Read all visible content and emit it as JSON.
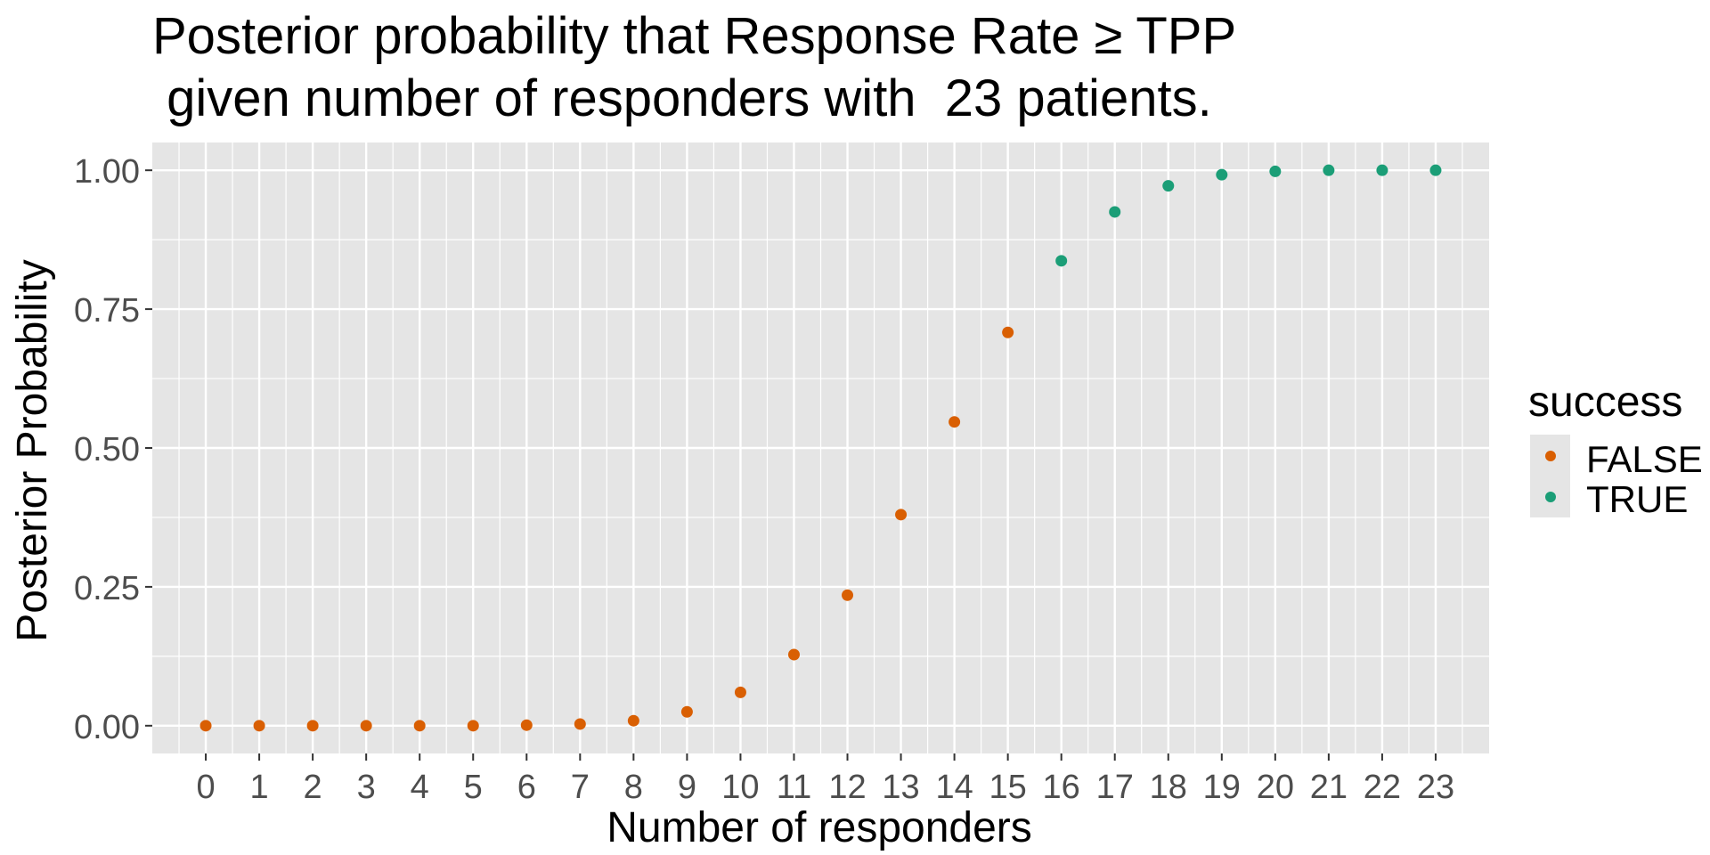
{
  "chart_data": {
    "type": "scatter",
    "title_lines": [
      "Posterior probability that Response Rate ≥ TPP",
      " given number of responders with  23 patients."
    ],
    "xlabel": "Number of responders",
    "ylabel": "Posterior Probability",
    "x": [
      0,
      1,
      2,
      3,
      4,
      5,
      6,
      7,
      8,
      9,
      10,
      11,
      12,
      13,
      14,
      15,
      16,
      17,
      18,
      19,
      20,
      21,
      22,
      23
    ],
    "y": [
      0.0,
      0.0,
      0.0,
      0.0,
      0.0,
      0.0,
      0.001,
      0.003,
      0.009,
      0.025,
      0.06,
      0.128,
      0.235,
      0.38,
      0.547,
      0.708,
      0.837,
      0.925,
      0.972,
      0.992,
      0.998,
      1.0,
      1.0,
      1.0
    ],
    "success": [
      false,
      false,
      false,
      false,
      false,
      false,
      false,
      false,
      false,
      false,
      false,
      false,
      false,
      false,
      false,
      false,
      true,
      true,
      true,
      true,
      true,
      true,
      true,
      true
    ],
    "xlim": [
      -1,
      24
    ],
    "ylim": [
      -0.05,
      1.05
    ],
    "x_ticks": [
      0,
      1,
      2,
      3,
      4,
      5,
      6,
      7,
      8,
      9,
      10,
      11,
      12,
      13,
      14,
      15,
      16,
      17,
      18,
      19,
      20,
      21,
      22,
      23
    ],
    "y_ticks": [
      0.0,
      0.25,
      0.5,
      0.75,
      1.0
    ],
    "y_tick_labels": [
      "0.00",
      "0.25",
      "0.50",
      "0.75",
      "1.00"
    ],
    "legend": {
      "title": "success",
      "position": "right",
      "entries": [
        {
          "label": "FALSE",
          "color": "#D95F02"
        },
        {
          "label": "TRUE",
          "color": "#1B9E77"
        }
      ]
    },
    "colors": {
      "false": "#D95F02",
      "true": "#1B9E77",
      "panel_background": "#E5E5E5",
      "grid": "#FFFFFF",
      "tick_text": "#4D4D4D"
    },
    "grid": true
  }
}
